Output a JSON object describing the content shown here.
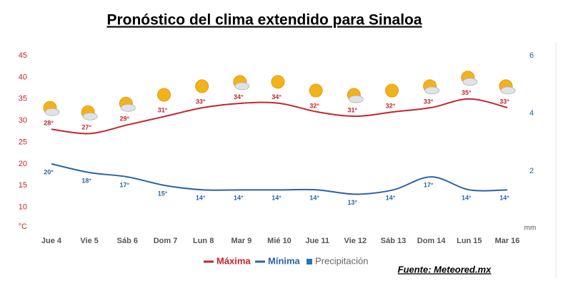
{
  "chart_data": {
    "type": "line",
    "title": "Pronóstico del clima extendido para Sinaloa",
    "source": "Fuente: Meteored.mx",
    "y_axis_label": "°C",
    "y2_axis_label": "mm",
    "categories": [
      "Jue 4",
      "Vie 5",
      "Sáb 6",
      "Dom 7",
      "Lun 8",
      "Mar 9",
      "Mié 10",
      "Jue 11",
      "Vie 12",
      "Sáb 13",
      "Dom 14",
      "Lun 15",
      "Mar 16"
    ],
    "series": [
      {
        "name": "Máxima",
        "color": "#c3262e",
        "values": [
          28,
          27,
          29,
          31,
          33,
          34,
          34,
          32,
          31,
          32,
          33,
          35,
          33
        ],
        "value_labels": [
          "28°",
          "27°",
          "29°",
          "31°",
          "33°",
          "34°",
          "34°",
          "32°",
          "31°",
          "32°",
          "33°",
          "35°",
          "33°"
        ]
      },
      {
        "name": "Mínima",
        "color": "#2b63a6",
        "values": [
          20,
          18,
          17,
          15,
          14,
          14,
          14,
          14,
          13,
          14,
          17,
          14,
          14
        ],
        "value_labels": [
          "20°",
          "18°",
          "17°",
          "15°",
          "14°",
          "14°",
          "14°",
          "14°",
          "13°",
          "14°",
          "17°",
          "14°",
          "14°"
        ]
      },
      {
        "name": "Precipitación",
        "color": "#2b72b8",
        "axis": "y2",
        "values": [
          null,
          null,
          null,
          null,
          null,
          null,
          null,
          null,
          null,
          null,
          null,
          null,
          null
        ]
      }
    ],
    "ylim": [
      5,
      45
    ],
    "yticks": [
      10,
      15,
      20,
      25,
      30,
      35,
      40,
      45
    ],
    "y2lim": [
      0,
      6
    ],
    "y2ticks": [
      2,
      4,
      6
    ],
    "grid": false
  }
}
